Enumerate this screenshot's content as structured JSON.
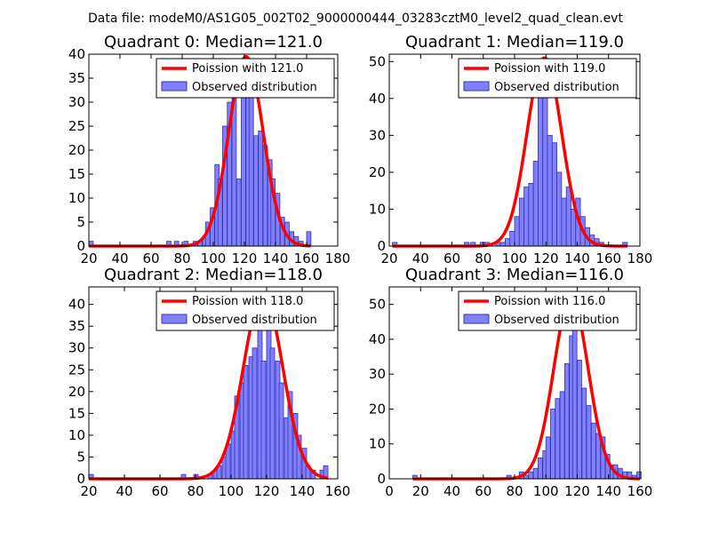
{
  "suptitle": "Data file: modeM0/AS1G05_002T02_9000000444_03283cztM0_level2_quad_clean.evt",
  "colors": {
    "bars": "#8080ff",
    "bar_edge": "#3333aa",
    "curve": "#ff0000",
    "frame": "#000000"
  },
  "chart_data": [
    {
      "type": "bar",
      "title": "Quadrant 0: Median=121.0",
      "xlabel": "",
      "ylabel": "",
      "xlim": [
        20,
        180
      ],
      "ylim": [
        0,
        40
      ],
      "xticks": [
        20,
        40,
        60,
        80,
        100,
        120,
        140,
        160,
        180
      ],
      "yticks": [
        0,
        5,
        10,
        15,
        20,
        25,
        30,
        35,
        40
      ],
      "legend_position": "top-right",
      "legend": {
        "curve": "Poission with 121.0",
        "bars": "Observed distribution"
      },
      "bin_width": 2.8,
      "bins": [
        [
          20,
          1
        ],
        [
          70,
          1
        ],
        [
          75,
          1
        ],
        [
          81,
          1
        ],
        [
          87,
          1
        ],
        [
          90,
          1
        ],
        [
          93,
          2
        ],
        [
          95,
          5
        ],
        [
          98,
          8
        ],
        [
          101,
          17
        ],
        [
          103,
          14
        ],
        [
          106,
          25
        ],
        [
          109,
          30
        ],
        [
          112,
          32
        ],
        [
          115,
          14
        ],
        [
          118,
          39
        ],
        [
          121,
          31
        ],
        [
          123,
          33
        ],
        [
          126,
          23
        ],
        [
          129,
          24
        ],
        [
          132,
          21
        ],
        [
          135,
          18
        ],
        [
          137,
          14
        ],
        [
          140,
          11
        ],
        [
          143,
          6
        ],
        [
          146,
          5
        ],
        [
          149,
          3
        ],
        [
          152,
          2
        ],
        [
          155,
          1
        ],
        [
          160,
          3
        ]
      ],
      "curve": {
        "peak": 39.5,
        "center": 121.0,
        "sigma": 11.0
      }
    },
    {
      "type": "bar",
      "title": "Quadrant 1: Median=119.0",
      "xlabel": "",
      "ylabel": "",
      "xlim": [
        20,
        180
      ],
      "ylim": [
        0,
        52
      ],
      "xticks": [
        20,
        40,
        60,
        80,
        100,
        120,
        140,
        160,
        180
      ],
      "yticks": [
        0,
        10,
        20,
        30,
        40,
        50
      ],
      "legend_position": "top-right",
      "legend": {
        "curve": "Poission with 119.0",
        "bars": "Observed distribution"
      },
      "bin_width": 3.0,
      "bins": [
        [
          22,
          1
        ],
        [
          68,
          1
        ],
        [
          72,
          1
        ],
        [
          78,
          1
        ],
        [
          81,
          1
        ],
        [
          88,
          1
        ],
        [
          91,
          1
        ],
        [
          94,
          2
        ],
        [
          97,
          4
        ],
        [
          100,
          8
        ],
        [
          103,
          13
        ],
        [
          106,
          16
        ],
        [
          109,
          17
        ],
        [
          112,
          23
        ],
        [
          115,
          42
        ],
        [
          118,
          51
        ],
        [
          121,
          30
        ],
        [
          124,
          28
        ],
        [
          127,
          20
        ],
        [
          130,
          13
        ],
        [
          133,
          16
        ],
        [
          136,
          10
        ],
        [
          139,
          13
        ],
        [
          142,
          8
        ],
        [
          145,
          5
        ],
        [
          148,
          3
        ],
        [
          151,
          2
        ],
        [
          154,
          1
        ],
        [
          169,
          1
        ]
      ],
      "curve": {
        "peak": 51.0,
        "center": 119.0,
        "sigma": 11.0
      }
    },
    {
      "type": "bar",
      "title": "Quadrant 2: Median=118.0",
      "xlabel": "",
      "ylabel": "",
      "xlim": [
        20,
        160
      ],
      "ylim": [
        0,
        44
      ],
      "xticks": [
        20,
        40,
        60,
        80,
        100,
        120,
        140,
        160
      ],
      "yticks": [
        0,
        5,
        10,
        15,
        20,
        25,
        30,
        35,
        40
      ],
      "legend_position": "top-right",
      "legend": {
        "curve": "Poission with 118.0",
        "bars": "Observed distribution"
      },
      "bin_width": 2.5,
      "bins": [
        [
          20,
          1
        ],
        [
          72,
          1
        ],
        [
          79,
          1
        ],
        [
          87,
          1
        ],
        [
          90,
          2
        ],
        [
          92,
          3
        ],
        [
          95,
          5
        ],
        [
          97,
          8
        ],
        [
          100,
          11
        ],
        [
          102,
          19
        ],
        [
          105,
          22
        ],
        [
          107,
          26
        ],
        [
          110,
          28
        ],
        [
          112,
          30
        ],
        [
          115,
          34
        ],
        [
          117,
          27
        ],
        [
          120,
          39
        ],
        [
          122,
          30
        ],
        [
          125,
          27
        ],
        [
          127,
          22
        ],
        [
          130,
          14
        ],
        [
          132,
          20
        ],
        [
          135,
          15
        ],
        [
          137,
          10
        ],
        [
          140,
          7
        ],
        [
          142,
          3
        ],
        [
          145,
          2
        ],
        [
          150,
          2
        ],
        [
          152,
          3
        ]
      ],
      "curve": {
        "peak": 42.5,
        "center": 118.0,
        "sigma": 11.0
      }
    },
    {
      "type": "bar",
      "title": "Quadrant 3: Median=116.0",
      "xlabel": "",
      "ylabel": "",
      "xlim": [
        0,
        160
      ],
      "ylim": [
        0,
        55
      ],
      "xticks": [
        0,
        20,
        40,
        60,
        80,
        100,
        120,
        140,
        160
      ],
      "yticks": [
        0,
        10,
        20,
        30,
        40,
        50
      ],
      "legend_position": "top-right",
      "legend": {
        "curve": "Poission with 116.0",
        "bars": "Observed distribution"
      },
      "bin_width": 2.8,
      "bins": [
        [
          15,
          1
        ],
        [
          75,
          1
        ],
        [
          83,
          2
        ],
        [
          86,
          1
        ],
        [
          89,
          2
        ],
        [
          92,
          3
        ],
        [
          95,
          6
        ],
        [
          98,
          8
        ],
        [
          100,
          12
        ],
        [
          103,
          20
        ],
        [
          106,
          23
        ],
        [
          109,
          25
        ],
        [
          112,
          33
        ],
        [
          115,
          41
        ],
        [
          117,
          44
        ],
        [
          120,
          34
        ],
        [
          123,
          26
        ],
        [
          126,
          21
        ],
        [
          129,
          16
        ],
        [
          132,
          13
        ],
        [
          135,
          12
        ],
        [
          138,
          7
        ],
        [
          141,
          4
        ],
        [
          143,
          4
        ],
        [
          146,
          3
        ],
        [
          149,
          2
        ],
        [
          152,
          2
        ],
        [
          155,
          1
        ],
        [
          158,
          2
        ]
      ],
      "curve": {
        "peak": 52.0,
        "center": 116.0,
        "sigma": 11.0
      }
    }
  ]
}
